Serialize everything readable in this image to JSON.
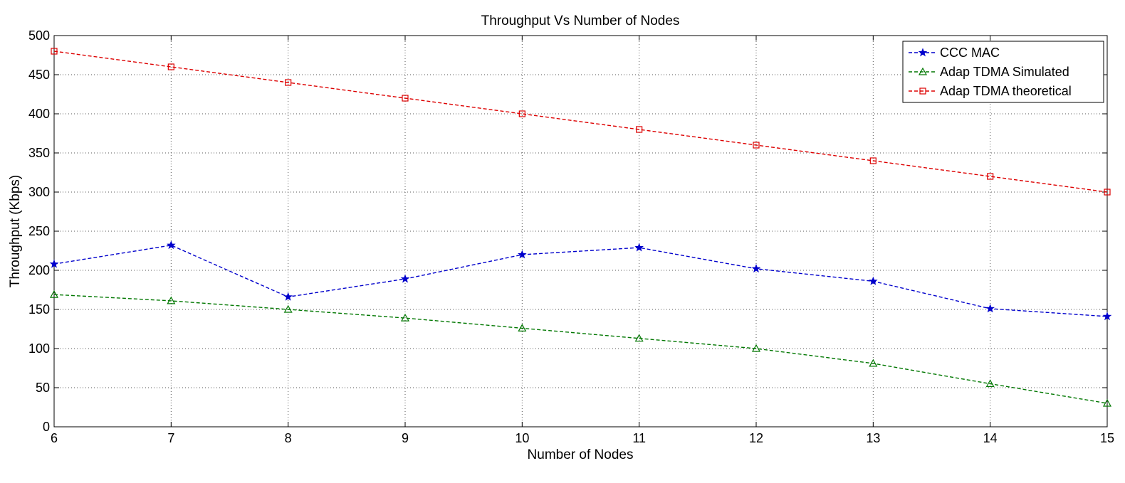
{
  "chart_data": {
    "type": "line",
    "title": "Throughput Vs Number of Nodes",
    "xlabel": "Number of Nodes",
    "ylabel": "Throughput (Kbps)",
    "xlim": [
      6,
      15
    ],
    "ylim": [
      0,
      500
    ],
    "xticks": [
      6,
      7,
      8,
      9,
      10,
      11,
      12,
      13,
      14,
      15
    ],
    "yticks": [
      0,
      50,
      100,
      150,
      200,
      250,
      300,
      350,
      400,
      450,
      500
    ],
    "grid": true,
    "legend_position": "top-right",
    "x": [
      6,
      7,
      8,
      9,
      10,
      11,
      12,
      13,
      14,
      15
    ],
    "series": [
      {
        "name": "CCC MAC",
        "color": "#0000cc",
        "marker": "star",
        "values": [
          208,
          232,
          166,
          189,
          220,
          229,
          202,
          186,
          151,
          141
        ]
      },
      {
        "name": "Adap TDMA Simulated",
        "color": "#007700",
        "marker": "triangle",
        "values": [
          169,
          161,
          150,
          139,
          126,
          113,
          100,
          81,
          55,
          30
        ]
      },
      {
        "name": "Adap TDMA theoretical",
        "color": "#dd0000",
        "marker": "square",
        "values": [
          480,
          460,
          440,
          420,
          400,
          380,
          360,
          340,
          320,
          300
        ]
      }
    ]
  }
}
